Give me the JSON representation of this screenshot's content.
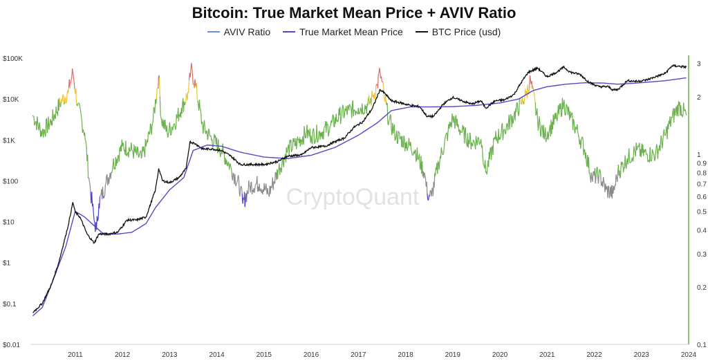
{
  "chart_data": {
    "type": "line",
    "title": "Bitcoin: True Market Mean Price + AVIV Ratio",
    "watermark": "CryptoQuant",
    "legend_position": "top-center",
    "grid": false,
    "x_ticks": [
      "2011",
      "2012",
      "2013",
      "2014",
      "2015",
      "2016",
      "2017",
      "2018",
      "2019",
      "2020",
      "2021",
      "2022",
      "2023",
      "2024"
    ],
    "x_range": [
      2010.55,
      2024.5
    ],
    "y_left": {
      "scale": "log",
      "range": [
        0.01,
        100000
      ],
      "ticks": [
        {
          "v": 100000,
          "label": "$100K"
        },
        {
          "v": 10000,
          "label": "$10K"
        },
        {
          "v": 1000,
          "label": "$1K"
        },
        {
          "v": 100,
          "label": "$100"
        },
        {
          "v": 10,
          "label": "$10"
        },
        {
          "v": 1,
          "label": "$1"
        },
        {
          "v": 0.1,
          "label": "$0.1"
        },
        {
          "v": 0.01,
          "label": "$0.01"
        }
      ]
    },
    "y_right": {
      "scale": "log",
      "range": [
        0.1,
        3.2
      ],
      "ticks": [
        {
          "v": 3,
          "label": "3"
        },
        {
          "v": 2,
          "label": "2"
        },
        {
          "v": 1,
          "label": "1"
        },
        {
          "v": 0.9,
          "label": "0.9"
        },
        {
          "v": 0.8,
          "label": "0.8"
        },
        {
          "v": 0.7,
          "label": "0.7"
        },
        {
          "v": 0.6,
          "label": "0.6"
        },
        {
          "v": 0.5,
          "label": "0.5"
        },
        {
          "v": 0.4,
          "label": "0.4"
        },
        {
          "v": 0.3,
          "label": "0.3"
        },
        {
          "v": 0.2,
          "label": "0.2"
        },
        {
          "v": 0.1,
          "label": "0.1"
        }
      ]
    },
    "colors": {
      "aviv": "#6a8ed8",
      "tmmp": "#5548c8",
      "btc": "#111111",
      "zone_red": "#e06666",
      "zone_yellow": "#f1c232",
      "zone_green": "#6ab04c",
      "zone_gray": "#8a8a8a",
      "zone_blue": "#4a3fd0",
      "right_axis": "#6ab04c"
    },
    "aviv_zone_thresholds": {
      "red": 2.3,
      "yellow": 1.9,
      "gray": 0.78,
      "blue": 0.6
    },
    "series": [
      {
        "name": "AVIV Ratio",
        "axis": "right",
        "x": [
          2010.6,
          2010.8,
          2011.0,
          2011.2,
          2011.35,
          2011.45,
          2011.55,
          2011.7,
          2011.8,
          2011.9,
          2011.95,
          2012.0,
          2012.15,
          2012.3,
          2012.5,
          2012.7,
          2012.9,
          2013.0,
          2013.15,
          2013.27,
          2013.32,
          2013.45,
          2013.6,
          2013.75,
          2013.9,
          2013.95,
          2014.05,
          2014.2,
          2014.4,
          2014.6,
          2014.8,
          2015.0,
          2015.05,
          2015.2,
          2015.4,
          2015.6,
          2015.8,
          2016.0,
          2016.2,
          2016.4,
          2016.5,
          2016.7,
          2016.9,
          2017.1,
          2017.3,
          2017.5,
          2017.7,
          2017.8,
          2017.9,
          2017.96,
          2018.05,
          2018.15,
          2018.3,
          2018.5,
          2018.7,
          2018.9,
          2018.96,
          2019.05,
          2019.2,
          2019.4,
          2019.5,
          2019.7,
          2019.9,
          2020.1,
          2020.2,
          2020.4,
          2020.6,
          2020.8,
          2020.95,
          2021.05,
          2021.15,
          2021.3,
          2021.45,
          2021.55,
          2021.7,
          2021.85,
          2022.0,
          2022.15,
          2022.3,
          2022.45,
          2022.6,
          2022.75,
          2022.9,
          2023.0,
          2023.2,
          2023.4,
          2023.6,
          2023.8,
          2024.0,
          2024.15,
          2024.3,
          2024.45
        ],
        "values": [
          1.6,
          1.3,
          1.5,
          1.9,
          2.1,
          2.7,
          1.8,
          1.3,
          0.72,
          0.45,
          0.4,
          0.55,
          0.7,
          0.88,
          1.1,
          1.05,
          0.95,
          1.1,
          1.5,
          2.6,
          1.55,
          1.3,
          1.45,
          1.75,
          2.1,
          2.8,
          2.3,
          1.4,
          1.2,
          1.05,
          0.85,
          0.66,
          0.55,
          0.68,
          0.7,
          0.62,
          0.82,
          1.05,
          1.15,
          1.3,
          1.25,
          1.3,
          1.4,
          1.6,
          1.7,
          1.75,
          1.8,
          2.0,
          2.3,
          2.7,
          2.0,
          1.5,
          1.25,
          1.15,
          1.05,
          0.8,
          0.62,
          0.6,
          0.9,
          1.3,
          1.55,
          1.3,
          1.15,
          1.2,
          0.8,
          1.2,
          1.35,
          1.6,
          1.85,
          2.05,
          2.45,
          1.5,
          1.25,
          1.35,
          1.55,
          1.85,
          1.55,
          1.3,
          1.05,
          0.75,
          0.78,
          0.65,
          0.62,
          0.8,
          0.95,
          1.05,
          1.0,
          1.0,
          1.25,
          1.55,
          1.8,
          1.6
        ]
      },
      {
        "name": "True Market Mean Price",
        "axis": "left",
        "x": [
          2010.6,
          2010.8,
          2011.0,
          2011.3,
          2011.5,
          2011.7,
          2011.9,
          2012.1,
          2012.4,
          2012.7,
          2013.0,
          2013.2,
          2013.5,
          2013.8,
          2014.0,
          2014.3,
          2014.6,
          2015.0,
          2015.5,
          2016.0,
          2016.5,
          2017.0,
          2017.5,
          2017.9,
          2018.2,
          2018.6,
          2019.0,
          2019.5,
          2020.0,
          2020.5,
          2020.9,
          2021.2,
          2021.5,
          2021.9,
          2022.3,
          2022.7,
          2023.0,
          2023.5,
          2024.0,
          2024.45
        ],
        "values": [
          0.05,
          0.08,
          0.3,
          2.5,
          18,
          13,
          8,
          5,
          5,
          5.5,
          9,
          22,
          60,
          120,
          550,
          750,
          700,
          500,
          380,
          350,
          420,
          650,
          1300,
          2600,
          5200,
          6400,
          6400,
          6500,
          7000,
          8000,
          10000,
          16000,
          20000,
          23000,
          25000,
          24500,
          23000,
          25000,
          28000,
          33000
        ]
      },
      {
        "name": "BTC Price (usd)",
        "axis": "left",
        "x": [
          2010.6,
          2010.8,
          2011.0,
          2011.15,
          2011.35,
          2011.45,
          2011.5,
          2011.6,
          2011.75,
          2011.9,
          2012.0,
          2012.2,
          2012.4,
          2012.6,
          2012.8,
          2013.0,
          2013.2,
          2013.27,
          2013.35,
          2013.5,
          2013.7,
          2013.85,
          2013.93,
          2014.05,
          2014.2,
          2014.4,
          2014.6,
          2014.8,
          2015.0,
          2015.2,
          2015.5,
          2015.8,
          2016.0,
          2016.3,
          2016.5,
          2016.8,
          2017.0,
          2017.2,
          2017.4,
          2017.6,
          2017.8,
          2017.96,
          2018.05,
          2018.2,
          2018.4,
          2018.6,
          2018.8,
          2018.96,
          2019.1,
          2019.3,
          2019.5,
          2019.7,
          2019.9,
          2020.1,
          2020.2,
          2020.4,
          2020.6,
          2020.8,
          2020.95,
          2021.1,
          2021.3,
          2021.5,
          2021.7,
          2021.85,
          2022.0,
          2022.2,
          2022.4,
          2022.6,
          2022.8,
          2022.9,
          2023.0,
          2023.2,
          2023.4,
          2023.6,
          2023.8,
          2024.0,
          2024.15,
          2024.3,
          2024.45
        ],
        "values": [
          0.06,
          0.1,
          0.3,
          1,
          8,
          30,
          17,
          13,
          5,
          3,
          5,
          5,
          5.5,
          11,
          11,
          13,
          60,
          200,
          100,
          90,
          120,
          200,
          900,
          800,
          600,
          600,
          550,
          400,
          250,
          250,
          250,
          300,
          400,
          430,
          650,
          700,
          900,
          1100,
          2000,
          2800,
          6000,
          17000,
          14000,
          9000,
          8000,
          7000,
          6500,
          3700,
          3800,
          7500,
          11000,
          9000,
          7500,
          9000,
          6000,
          9000,
          9500,
          13000,
          25000,
          45000,
          57000,
          35000,
          45000,
          60000,
          45000,
          40000,
          25000,
          20000,
          20000,
          16500,
          17000,
          28000,
          27000,
          29000,
          35000,
          42000,
          65000,
          63000,
          60000
        ]
      }
    ]
  }
}
